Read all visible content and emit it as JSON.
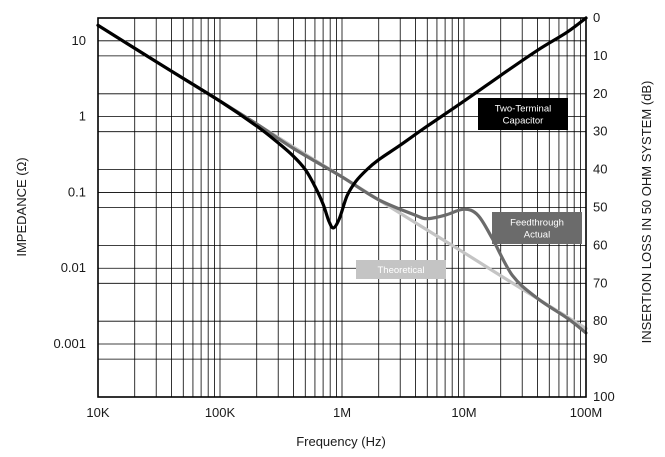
{
  "chart_data": {
    "type": "line",
    "title": "",
    "xlabel": "Frequency (Hz)",
    "ylabel": "IMPEDANCE (Ω)",
    "y2label": "INSERTION LOSS IN 50 OHM SYSTEM (dB)",
    "x_scale": "log",
    "y_scale": "log",
    "xlim": [
      10000,
      100000000
    ],
    "ylim": [
      0.0002,
      20
    ],
    "y2lim": [
      100,
      0
    ],
    "x_ticks": [
      10000,
      100000,
      1000000,
      10000000,
      100000000
    ],
    "x_tick_labels": [
      "10K",
      "100K",
      "1M",
      "10M",
      "100M"
    ],
    "y_ticks": [
      10,
      1,
      0.1,
      0.01,
      0.001
    ],
    "y_tick_labels": [
      "10",
      "1",
      "0.1",
      "0.01",
      "0.001"
    ],
    "y2_ticks": [
      0,
      10,
      20,
      30,
      40,
      50,
      60,
      70,
      80,
      90,
      100
    ],
    "y2_tick_labels": [
      "0",
      "10",
      "20",
      "30",
      "40",
      "50",
      "60",
      "70",
      "80",
      "90",
      "100"
    ],
    "grid": true,
    "series": [
      {
        "name": "Theoretical",
        "color": "#c4c4c4",
        "x": [
          10000,
          30000,
          100000,
          300000,
          1000000,
          3000000,
          10000000,
          30000000,
          100000000
        ],
        "y": [
          16,
          5.3,
          1.6,
          0.53,
          0.16,
          0.053,
          0.016,
          0.0053,
          0.0016
        ]
      },
      {
        "name": "Feedthrough Actual",
        "color": "#6b6b6b",
        "x": [
          10000,
          30000,
          100000,
          200000,
          400000,
          1000000,
          2000000,
          4000000,
          5000000,
          7000000,
          10000000,
          13000000,
          17000000,
          25000000,
          40000000,
          70000000,
          100000000
        ],
        "y": [
          16,
          5.3,
          1.6,
          0.8,
          0.38,
          0.16,
          0.08,
          0.05,
          0.045,
          0.05,
          0.06,
          0.05,
          0.025,
          0.008,
          0.004,
          0.0022,
          0.0014
        ]
      },
      {
        "name": "Two-Terminal Capacitor",
        "color": "#000000",
        "x": [
          10000,
          30000,
          100000,
          200000,
          300000,
          400000,
          500000,
          600000,
          700000,
          780000,
          850000,
          950000,
          1100000,
          1300000,
          1600000,
          2000000,
          3000000,
          5000000,
          10000000,
          20000000,
          40000000,
          70000000,
          100000000
        ],
        "y": [
          16,
          5.3,
          1.6,
          0.75,
          0.45,
          0.3,
          0.2,
          0.12,
          0.07,
          0.042,
          0.034,
          0.045,
          0.09,
          0.14,
          0.2,
          0.27,
          0.42,
          0.75,
          1.6,
          3.5,
          7.5,
          13,
          20
        ]
      }
    ],
    "annotations": [
      {
        "text": [
          "Two-Terminal",
          "Capacitor"
        ],
        "bg": "#000000",
        "fg": "#ffffff",
        "anchor": "Two-Terminal Capacitor"
      },
      {
        "text": [
          "Feedthrough",
          "Actual"
        ],
        "bg": "#6b6b6b",
        "fg": "#ffffff",
        "anchor": "Feedthrough Actual"
      },
      {
        "text": [
          "Theoretical"
        ],
        "bg": "#c4c4c4",
        "fg": "#ffffff",
        "anchor": "Theoretical"
      }
    ]
  }
}
